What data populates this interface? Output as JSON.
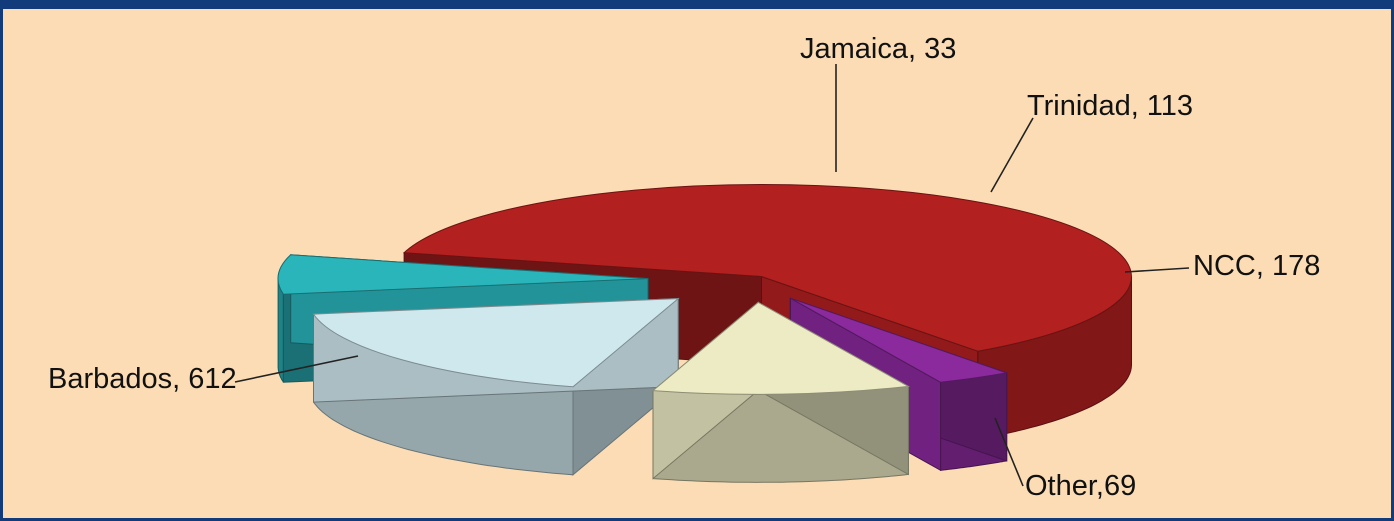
{
  "chart_data": {
    "type": "pie",
    "title": "",
    "slices": [
      {
        "label": "Barbados, 612",
        "name": "Barbados",
        "value": 612,
        "color": "#b32020"
      },
      {
        "label": "Jamaica, 33",
        "name": "Jamaica",
        "value": 33,
        "color": "#8a2a9c"
      },
      {
        "label": "Trinidad, 113",
        "name": "Trinidad",
        "value": 113,
        "color": "#ecebc4"
      },
      {
        "label": "NCC, 178",
        "name": "NCC",
        "value": 178,
        "color": "#cfe8ee"
      },
      {
        "label": "Other,69",
        "name": "Other",
        "value": 69,
        "color": "#2ab5bb"
      }
    ],
    "exploded": true,
    "three_d": true,
    "legend": "none",
    "background": "#fbdcb4",
    "border_color": "#113b7a"
  }
}
